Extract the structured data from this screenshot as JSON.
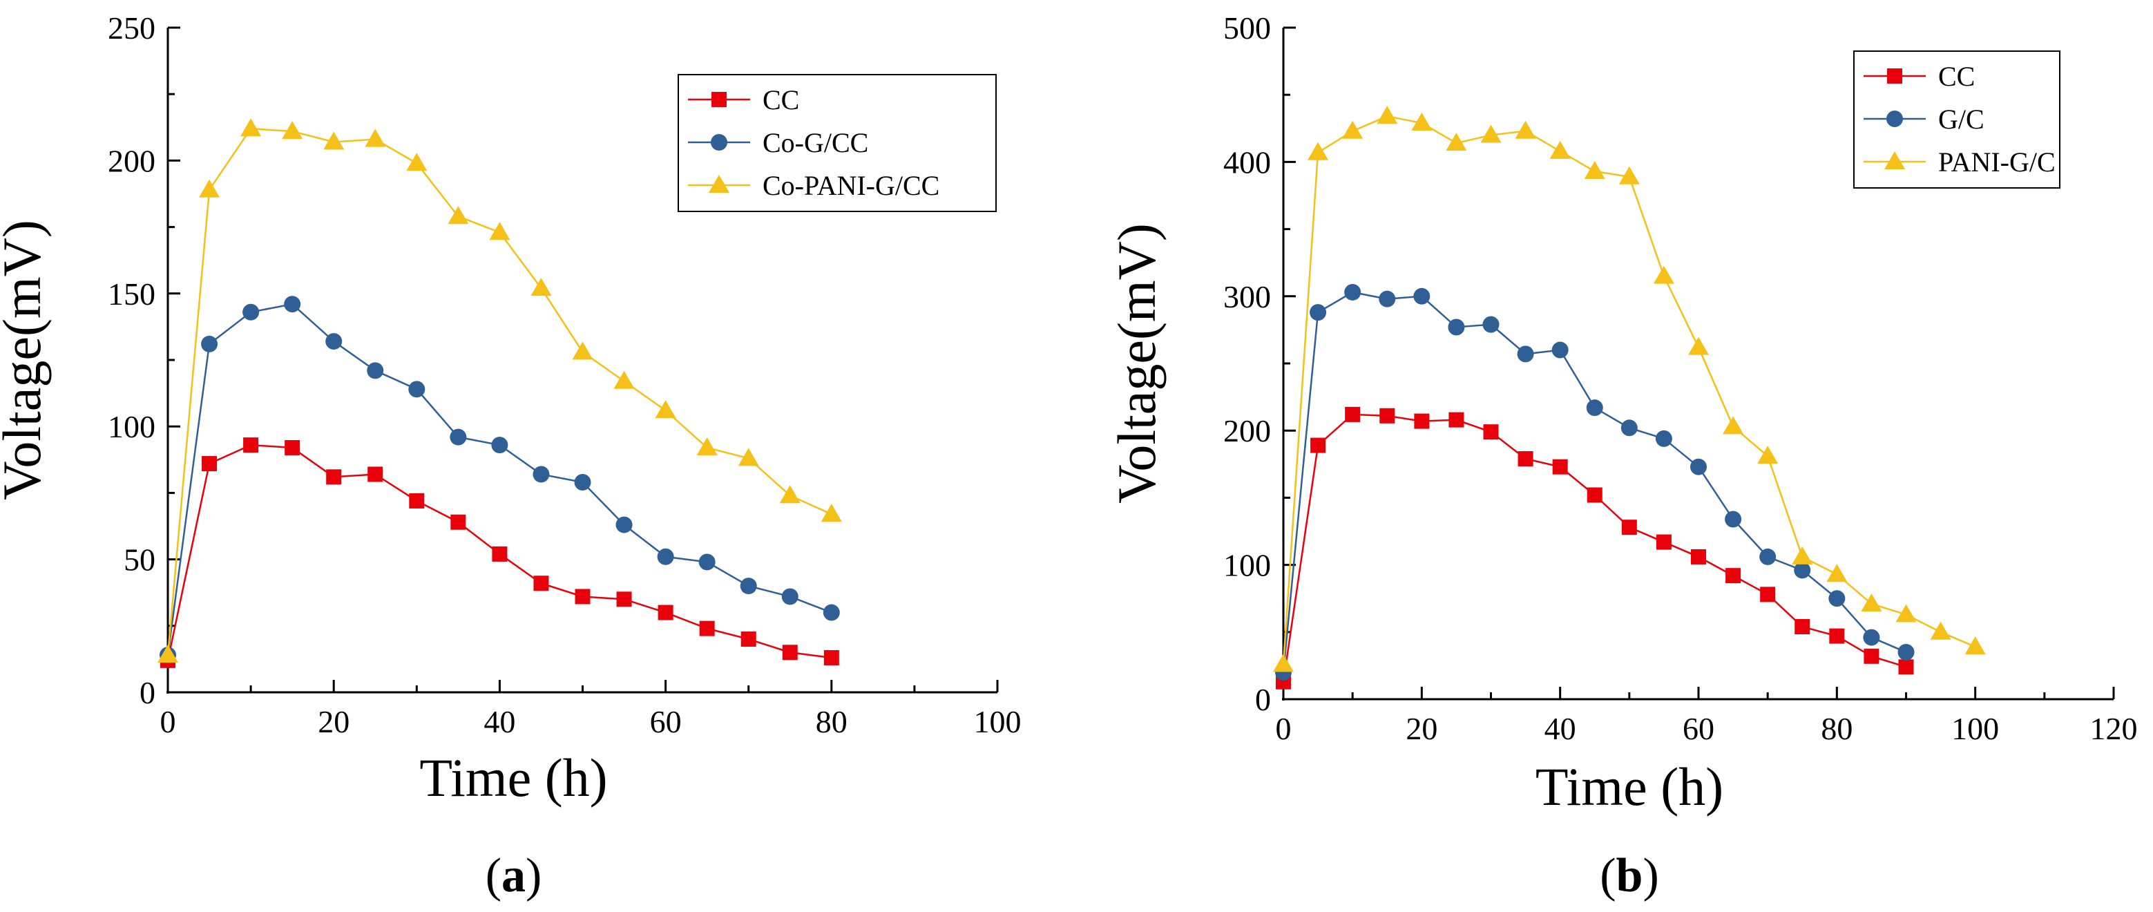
{
  "chart_data": [
    {
      "type": "line",
      "panel_label": "a",
      "xlabel": "Time (h)",
      "ylabel": "Voltage(mV)",
      "xlim": [
        0,
        100
      ],
      "ylim": [
        0,
        250
      ],
      "xticks": [
        0,
        20,
        40,
        60,
        80,
        100
      ],
      "yticks": [
        0,
        50,
        100,
        150,
        200,
        250
      ],
      "legend_position": "top-right",
      "x": [
        0,
        5,
        10,
        15,
        20,
        25,
        30,
        35,
        40,
        45,
        50,
        55,
        60,
        65,
        70,
        75,
        80
      ],
      "series": [
        {
          "name": "CC",
          "color": "#e8000b",
          "marker": "square",
          "values": [
            12,
            86,
            93,
            92,
            81,
            82,
            72,
            64,
            52,
            41,
            36,
            35,
            30,
            24,
            20,
            15,
            13
          ]
        },
        {
          "name": "Co-G/CC",
          "color": "#2f5f95",
          "marker": "circle",
          "values": [
            14,
            131,
            143,
            146,
            132,
            121,
            114,
            96,
            93,
            82,
            79,
            63,
            51,
            49,
            40,
            36,
            30
          ]
        },
        {
          "name": "Co-PANI-G/CC",
          "color": "#f5c018",
          "marker": "triangle",
          "values": [
            14,
            189,
            212,
            211,
            207,
            208,
            199,
            179,
            173,
            152,
            128,
            117,
            106,
            92,
            88,
            74,
            67
          ]
        }
      ]
    },
    {
      "type": "line",
      "panel_label": "b",
      "xlabel": "Time (h)",
      "ylabel": "Voltage(mV)",
      "xlim": [
        0,
        120
      ],
      "ylim": [
        0,
        500
      ],
      "xticks": [
        0,
        20,
        40,
        60,
        80,
        100,
        120
      ],
      "yticks": [
        0,
        100,
        200,
        300,
        400,
        500
      ],
      "legend_position": "top-right",
      "series": [
        {
          "name": "CC",
          "color": "#e8000b",
          "marker": "square",
          "x": [
            0,
            5,
            10,
            15,
            20,
            25,
            30,
            35,
            40,
            45,
            50,
            55,
            60,
            65,
            70,
            75,
            80,
            85,
            90
          ],
          "values": [
            13,
            189,
            212,
            211,
            207,
            208,
            199,
            179,
            173,
            152,
            128,
            117,
            106,
            92,
            78,
            54,
            47,
            32,
            24
          ]
        },
        {
          "name": "G/C",
          "color": "#2f5f95",
          "marker": "circle",
          "x": [
            0,
            5,
            10,
            15,
            20,
            25,
            30,
            35,
            40,
            45,
            50,
            55,
            60,
            65,
            70,
            75,
            80,
            85,
            90
          ],
          "values": [
            20,
            288,
            303,
            298,
            300,
            277,
            279,
            257,
            260,
            217,
            202,
            194,
            173,
            134,
            106,
            96,
            75,
            46,
            35
          ]
        },
        {
          "name": "PANI-G/C",
          "color": "#f5c018",
          "marker": "triangle",
          "x": [
            0,
            5,
            10,
            15,
            20,
            25,
            30,
            35,
            40,
            45,
            50,
            55,
            60,
            65,
            70,
            75,
            80,
            85,
            90,
            95,
            100
          ],
          "values": [
            26,
            407,
            423,
            434,
            429,
            414,
            420,
            423,
            408,
            393,
            389,
            315,
            262,
            203,
            181,
            106,
            93,
            71,
            63,
            50,
            39
          ]
        }
      ]
    }
  ]
}
